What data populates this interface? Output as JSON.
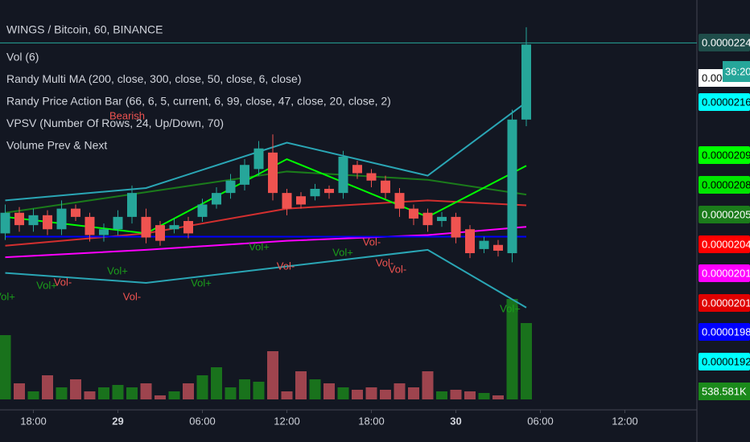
{
  "header": {
    "title": "WINGS / Bitcoin, 60, BINANCE",
    "indicators": [
      "Vol (6)",
      "Randy Multi MA (200, close, 300, close, 50, close, 6, close)",
      "Randy Price Action Bar (66, 6, 5, current, 6, 99, close, 47, close, 20, close, 2)",
      "VPSV (Number Of Rows, 24, Up/Down, 70)",
      "Volume Prev & Next"
    ]
  },
  "chart_data": {
    "type": "candlestick",
    "open": [
      2.01e-05,
      2.035e-05,
      2.02e-05,
      2.032e-05,
      2.015e-05,
      2.04e-05,
      2.03e-05,
      2.008e-05,
      2.015e-05,
      2.03e-05,
      2.03e-05,
      2.02e-05,
      2.015e-05,
      2.025e-05,
      2.03e-05,
      2.045e-05,
      2.059e-05,
      2.069e-05,
      2.088e-05,
      2.108e-05,
      2.059e-05,
      2.055e-05,
      2.055e-05,
      2.064e-05,
      2.059e-05,
      2.093e-05,
      2.083e-05,
      2.074e-05,
      2.059e-05,
      2.04e-05,
      2.035e-05,
      2.025e-05,
      2.03e-05,
      2.015e-05,
      1.991e-05,
      1.996e-05,
      1.986e-05,
      2.148e-05
    ],
    "high": [
      2.045e-05,
      2.042e-05,
      2.04e-05,
      2.038e-05,
      2.05e-05,
      2.045e-05,
      2.035e-05,
      2.022e-05,
      2.038e-05,
      2.068e-05,
      2.04e-05,
      2.025e-05,
      2.028e-05,
      2.03e-05,
      2.052e-05,
      2.066e-05,
      2.082e-05,
      2.1e-05,
      2.122e-05,
      2.13e-05,
      2.064e-05,
      2.06e-05,
      2.07e-05,
      2.068e-05,
      2.11e-05,
      2.098e-05,
      2.088e-05,
      2.08e-05,
      2.065e-05,
      2.045e-05,
      2.04e-05,
      2.036e-05,
      2.035e-05,
      2.02e-05,
      2.006e-05,
      2.002e-05,
      2.16e-05,
      2.26e-05
    ],
    "low": [
      2.002e-05,
      2.012e-05,
      2.012e-05,
      2.008e-05,
      2.008e-05,
      2.025e-05,
      2e-05,
      2e-05,
      2.008e-05,
      2.022e-05,
      1.998e-05,
      1.995e-05,
      2.01e-05,
      2.004e-05,
      2.024e-05,
      2.04e-05,
      2.052e-05,
      2.062e-05,
      2.08e-05,
      2.05e-05,
      2.032e-05,
      2.04e-05,
      2.05e-05,
      2.052e-05,
      2.052e-05,
      2.076e-05,
      2.066e-05,
      2.052e-05,
      2.03e-05,
      2.02e-05,
      2.012e-05,
      2.018e-05,
      1.998e-05,
      1.98e-05,
      1.986e-05,
      1.982e-05,
      1.975e-05,
      2.14e-05
    ],
    "close": [
      2.035e-05,
      2.02e-05,
      2.032e-05,
      2.015e-05,
      2.04e-05,
      2.03e-05,
      2.008e-05,
      2.015e-05,
      2.03e-05,
      2.059e-05,
      2.005e-05,
      2.001e-05,
      2.02e-05,
      2.01e-05,
      2.045e-05,
      2.059e-05,
      2.074e-05,
      2.093e-05,
      2.113e-05,
      2.059e-05,
      2.04e-05,
      2.045e-05,
      2.064e-05,
      2.059e-05,
      2.103e-05,
      2.083e-05,
      2.074e-05,
      2.059e-05,
      2.04e-05,
      2.028e-05,
      2.02e-05,
      2.03e-05,
      2.005e-05,
      1.986e-05,
      2.001e-05,
      1.989e-05,
      2.148e-05,
      2.239e-05
    ],
    "volume": [
      400000,
      100000,
      50000,
      150000,
      75000,
      125000,
      50000,
      75000,
      90000,
      75000,
      100000,
      25000,
      50000,
      100000,
      150000,
      200000,
      75000,
      125000,
      110000,
      300000,
      50000,
      175000,
      125000,
      100000,
      75000,
      60000,
      75000,
      60000,
      100000,
      75000,
      175000,
      50000,
      60000,
      50000,
      40000,
      25000,
      625000,
      475000
    ],
    "up_color": "#26a69a",
    "down_color": "#ef5350",
    "ylim": [
      1.796e-05,
      2.293e-05
    ],
    "vlim": [
      0,
      600000
    ],
    "xticks": [
      {
        "value": 2,
        "label": "18:00"
      },
      {
        "value": 8,
        "label": "29"
      },
      {
        "value": 14,
        "label": "06:00"
      },
      {
        "value": 20,
        "label": "12:00"
      },
      {
        "value": 26,
        "label": "18:00"
      },
      {
        "value": 32,
        "label": "30"
      },
      {
        "value": 38,
        "label": "06:00"
      },
      {
        "value": 44,
        "label": "12:00"
      }
    ],
    "lines": [
      {
        "color": "#2aa6b5",
        "x": [
          0,
          10,
          20,
          30,
          37
        ],
        "values": [
          2.05e-05,
          2.065e-05,
          2.12e-05,
          2.08e-05,
          2.169e-05
        ]
      },
      {
        "color": "#2aa6b5",
        "x": [
          0,
          10,
          20,
          30,
          37
        ],
        "values": [
          1.962e-05,
          1.95e-05,
          1.97e-05,
          1.99e-05,
          1.92e-05
        ]
      },
      {
        "color": "#1b7b1b",
        "x": [
          0,
          10,
          20,
          30,
          37
        ],
        "values": [
          2.035e-05,
          2.06e-05,
          2.085e-05,
          2.075e-05,
          2.057e-05
        ]
      },
      {
        "color": "#d32f2f",
        "x": [
          0,
          10,
          20,
          30,
          37
        ],
        "values": [
          1.995e-05,
          2.01e-05,
          2.04e-05,
          2.05e-05,
          2.044e-05
        ]
      },
      {
        "color": "#ff00ff",
        "x": [
          0,
          10,
          20,
          30,
          37
        ],
        "values": [
          1.981e-05,
          1.99e-05,
          2.001e-05,
          2.008e-05,
          2.018e-05
        ]
      },
      {
        "color": "#0000ff",
        "x": [
          0,
          10,
          20,
          30,
          37
        ],
        "values": [
          2.006e-05,
          2.006e-05,
          2.006e-05,
          2.006e-05,
          2.006e-05
        ]
      },
      {
        "color": "#00ff00",
        "x": [
          0,
          10,
          20,
          30,
          37
        ],
        "values": [
          2.03e-05,
          2.01e-05,
          2.1e-05,
          2.03e-05,
          2.092e-05
        ]
      }
    ],
    "price_tags": [
      {
        "value": 2.241e-05,
        "color": "#1f4d4a",
        "text_color": "#ffffff"
      },
      {
        "value": 2.169e-05,
        "color": "#00ffff",
        "text_color": "#000000"
      },
      {
        "value": 2.092e-05,
        "color": "#00ff00",
        "text_color": "#000000"
      },
      {
        "value": 2.089e-05,
        "color": "#00e600",
        "text_color": "#000000"
      },
      {
        "value": 2.057e-05,
        "color": "#1b7b1b",
        "text_color": "#ffffff"
      },
      {
        "value": 2.044e-05,
        "color": "#ff0000",
        "text_color": "#ffffff"
      },
      {
        "value": 2.018e-05,
        "color": "#ff00ff",
        "text_color": "#ffffff"
      },
      {
        "value": 2.01e-05,
        "color": "#e00000",
        "text_color": "#ffffff"
      },
      {
        "value": 1.987e-05,
        "color": "#0000ff",
        "text_color": "#ffffff"
      },
      {
        "value": 1.92e-05,
        "color": "#00ffff",
        "text_color": "#000000"
      }
    ],
    "truncated_tag": "0.0000",
    "countdown": "36:20",
    "volume_tag": {
      "value": 538581,
      "label": "538.581K"
    },
    "annotations": [
      {
        "text": "Bearish",
        "color": "#ef5350"
      },
      {
        "text": "Vol+",
        "color": "#1b9e1b"
      },
      {
        "text": "Vol+",
        "color": "#1b9e1b"
      },
      {
        "text": "Vol-",
        "color": "#ef5350"
      },
      {
        "text": "Vol+",
        "color": "#1b9e1b"
      },
      {
        "text": "Vol-",
        "color": "#ef5350"
      },
      {
        "text": "Vol+",
        "color": "#1b9e1b"
      },
      {
        "text": "Vol+",
        "color": "#1b9e1b"
      },
      {
        "text": "Vol-",
        "color": "#ef5350"
      },
      {
        "text": "Vol+",
        "color": "#1b9e1b"
      },
      {
        "text": "Vol-",
        "color": "#ef5350"
      },
      {
        "text": "Vol-",
        "color": "#ef5350"
      },
      {
        "text": "Vol-",
        "color": "#ef5350"
      },
      {
        "text": "Vol+",
        "color": "#1b9e1b"
      }
    ]
  }
}
